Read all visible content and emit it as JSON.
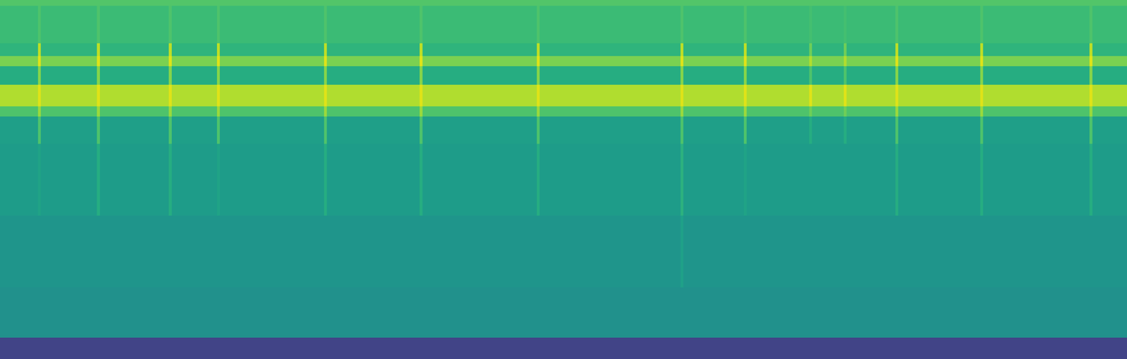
{
  "chart_data": {
    "type": "heatmap",
    "color": "viridis",
    "tick_labels": false,
    "xlim": [
      0,
      1568
    ],
    "ylim": [
      0,
      500
    ],
    "x_bins": [
      0,
      53,
      57,
      135,
      139,
      235,
      239,
      302,
      306,
      451,
      455,
      584,
      588,
      747,
      751,
      947,
      951,
      1035,
      1039,
      1126,
      1130,
      1174,
      1178,
      1246,
      1250,
      1364,
      1368,
      1516,
      1520,
      1568
    ],
    "y_bins": [
      0,
      30,
      100,
      200,
      300,
      338,
      352,
      382,
      408,
      422,
      440,
      492,
      500
    ],
    "zlim": [
      0,
      1
    ],
    "cells": [
      [
        0.2,
        0.2,
        0.2,
        0.2,
        0.2,
        0.2,
        0.2,
        0.2,
        0.2,
        0.2,
        0.2,
        0.2,
        0.2,
        0.2,
        0.2,
        0.2,
        0.2,
        0.2,
        0.2,
        0.2,
        0.2,
        0.2,
        0.2,
        0.2,
        0.2,
        0.2,
        0.2,
        0.2,
        0.2
      ],
      [
        0.5,
        0.5,
        0.5,
        0.5,
        0.5,
        0.5,
        0.5,
        0.5,
        0.5,
        0.5,
        0.5,
        0.5,
        0.5,
        0.5,
        0.5,
        0.5,
        0.5,
        0.5,
        0.5,
        0.5,
        0.5,
        0.5,
        0.5,
        0.5,
        0.5,
        0.5,
        0.5,
        0.5,
        0.5
      ],
      [
        0.52,
        0.52,
        0.52,
        0.52,
        0.52,
        0.52,
        0.52,
        0.52,
        0.52,
        0.52,
        0.52,
        0.52,
        0.52,
        0.52,
        0.52,
        0.57,
        0.52,
        0.52,
        0.52,
        0.52,
        0.52,
        0.52,
        0.52,
        0.52,
        0.52,
        0.52,
        0.52,
        0.52,
        0.52
      ],
      [
        0.55,
        0.58,
        0.55,
        0.62,
        0.55,
        0.62,
        0.55,
        0.58,
        0.55,
        0.62,
        0.55,
        0.62,
        0.55,
        0.62,
        0.55,
        0.64,
        0.55,
        0.58,
        0.55,
        0.55,
        0.55,
        0.55,
        0.55,
        0.62,
        0.55,
        0.62,
        0.55,
        0.62,
        0.55
      ],
      [
        0.56,
        0.72,
        0.56,
        0.72,
        0.56,
        0.72,
        0.56,
        0.72,
        0.56,
        0.72,
        0.56,
        0.72,
        0.56,
        0.72,
        0.56,
        0.72,
        0.56,
        0.72,
        0.56,
        0.62,
        0.56,
        0.62,
        0.56,
        0.72,
        0.56,
        0.72,
        0.56,
        0.72,
        0.56
      ],
      [
        0.72,
        0.85,
        0.72,
        0.85,
        0.72,
        0.85,
        0.72,
        0.85,
        0.72,
        0.85,
        0.72,
        0.85,
        0.72,
        0.85,
        0.72,
        0.85,
        0.72,
        0.85,
        0.72,
        0.78,
        0.72,
        0.78,
        0.72,
        0.85,
        0.72,
        0.85,
        0.72,
        0.85,
        0.72
      ],
      [
        0.88,
        0.95,
        0.88,
        0.95,
        0.88,
        0.95,
        0.88,
        0.95,
        0.88,
        0.95,
        0.88,
        0.95,
        0.88,
        0.95,
        0.88,
        0.95,
        0.88,
        0.95,
        0.88,
        0.95,
        0.88,
        0.95,
        0.88,
        0.95,
        0.88,
        0.95,
        0.88,
        0.95,
        0.88
      ],
      [
        0.62,
        0.82,
        0.62,
        0.82,
        0.62,
        0.82,
        0.62,
        0.82,
        0.62,
        0.82,
        0.62,
        0.82,
        0.62,
        0.82,
        0.62,
        0.82,
        0.62,
        0.82,
        0.62,
        0.72,
        0.62,
        0.72,
        0.62,
        0.82,
        0.62,
        0.82,
        0.62,
        0.82,
        0.62
      ],
      [
        0.8,
        0.95,
        0.8,
        0.95,
        0.8,
        0.95,
        0.8,
        0.95,
        0.8,
        0.95,
        0.8,
        0.95,
        0.8,
        0.95,
        0.8,
        0.95,
        0.8,
        0.95,
        0.8,
        0.88,
        0.8,
        0.88,
        0.8,
        0.95,
        0.8,
        0.95,
        0.8,
        0.95,
        0.8
      ],
      [
        0.65,
        0.9,
        0.65,
        0.9,
        0.65,
        0.9,
        0.65,
        0.9,
        0.65,
        0.9,
        0.65,
        0.9,
        0.65,
        0.9,
        0.65,
        0.9,
        0.65,
        0.9,
        0.65,
        0.78,
        0.65,
        0.78,
        0.65,
        0.9,
        0.65,
        0.9,
        0.65,
        0.9,
        0.65
      ],
      [
        0.68,
        0.72,
        0.68,
        0.72,
        0.68,
        0.72,
        0.68,
        0.72,
        0.68,
        0.72,
        0.68,
        0.72,
        0.68,
        0.72,
        0.68,
        0.72,
        0.68,
        0.72,
        0.68,
        0.7,
        0.68,
        0.7,
        0.68,
        0.72,
        0.68,
        0.72,
        0.68,
        0.72,
        0.68
      ],
      [
        0.73,
        0.73,
        0.73,
        0.73,
        0.73,
        0.73,
        0.73,
        0.73,
        0.73,
        0.73,
        0.73,
        0.73,
        0.73,
        0.73,
        0.73,
        0.73,
        0.73,
        0.73,
        0.73,
        0.73,
        0.73,
        0.73,
        0.73,
        0.73,
        0.73,
        0.73,
        0.73,
        0.73,
        0.73
      ]
    ]
  }
}
